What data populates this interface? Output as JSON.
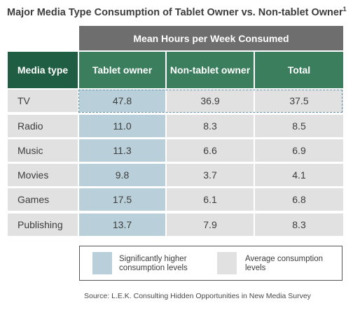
{
  "title": "Major Media Type Consumption of Tablet Owner vs. Non-tablet Owner",
  "title_footnote": "1",
  "super_header": "Mean Hours per Week Consumed",
  "headers": {
    "media_type": "Media type",
    "tablet": "Tablet owner",
    "non_tablet": "Non-tablet owner",
    "total": "Total"
  },
  "rows": [
    {
      "media": "TV",
      "tablet": "47.8",
      "non_tablet": "36.9",
      "total": "37.5"
    },
    {
      "media": "Radio",
      "tablet": "11.0",
      "non_tablet": "8.3",
      "total": "8.5"
    },
    {
      "media": "Music",
      "tablet": "11.3",
      "non_tablet": "6.6",
      "total": "6.9"
    },
    {
      "media": "Movies",
      "tablet": "9.8",
      "non_tablet": "3.7",
      "total": "4.1"
    },
    {
      "media": "Games",
      "tablet": "17.5",
      "non_tablet": "6.1",
      "total": "6.8"
    },
    {
      "media": "Publishing",
      "tablet": "13.7",
      "non_tablet": "7.9",
      "total": "8.3"
    }
  ],
  "legend": {
    "higher": "Significantly higher consumption levels",
    "average": "Average consumption levels"
  },
  "source": "Source:  L.E.K. Consulting Hidden Opportunities in New Media Survey",
  "colors": {
    "header_dark": "#1f5e43",
    "header_green": "#3a7e5d",
    "super_header": "#6e6e6e",
    "highlight": "#b9cfd9",
    "average": "#e1e1e1"
  }
}
